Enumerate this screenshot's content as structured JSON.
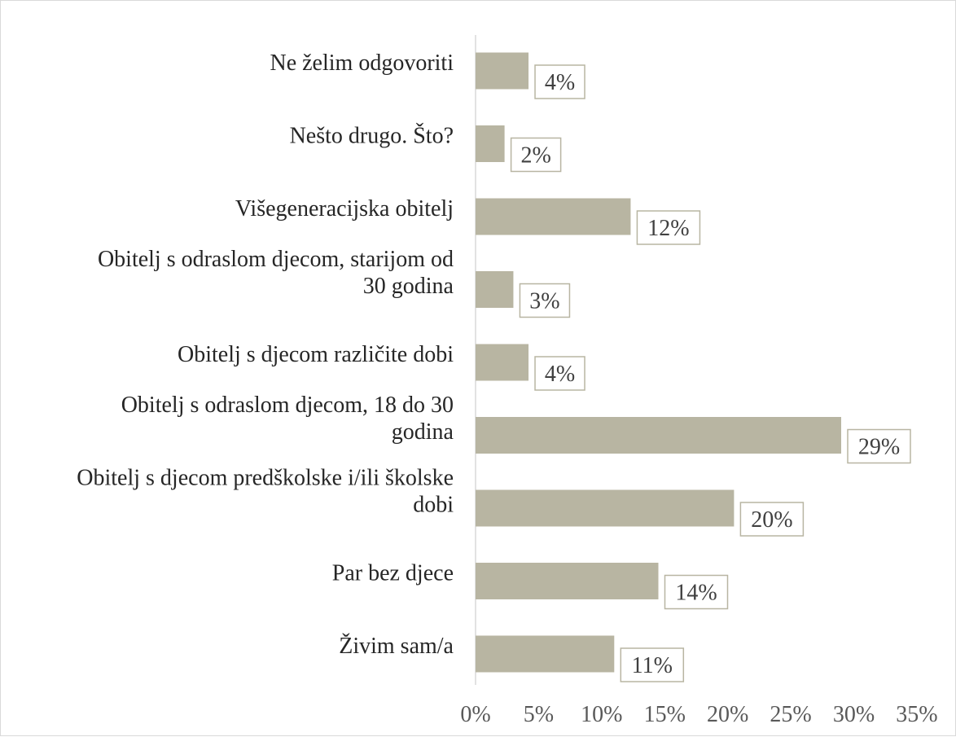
{
  "chart_data": {
    "type": "bar",
    "orientation": "horizontal",
    "categories": [
      "Ne želim odgovoriti",
      "Nešto drugo. Što?",
      "Višegeneracijska obitelj",
      "Obitelj s odraslom djecom, starijom od 30 godina",
      "Obitelj s djecom različite dobi",
      "Obitelj s odraslom djecom, 18 do 30 godina",
      "Obitelj s djecom predškolske i/ili školske dobi",
      "Par bez djece",
      "Živim sam/a"
    ],
    "category_lines": [
      [
        "Ne želim odgovoriti"
      ],
      [
        "Nešto drugo. Što?"
      ],
      [
        "Višegeneracijska obitelj"
      ],
      [
        "Obitelj s odraslom djecom, starijom od",
        "30 godina"
      ],
      [
        "Obitelj s djecom različite dobi"
      ],
      [
        "Obitelj s odraslom djecom, 18 do 30",
        "godina"
      ],
      [
        "Obitelj s djecom predškolske i/ili školske",
        "dobi"
      ],
      [
        "Par bez djece"
      ],
      [
        "Živim sam/a"
      ]
    ],
    "values": [
      4,
      2,
      12,
      3,
      4,
      29,
      20,
      14,
      11
    ],
    "plotted_values": [
      4.2,
      2.3,
      12.3,
      3.0,
      4.2,
      29.0,
      20.5,
      14.5,
      11.0
    ],
    "data_labels": [
      "4%",
      "2%",
      "12%",
      "3%",
      "4%",
      "29%",
      "20%",
      "14%",
      "11%"
    ],
    "x_ticks": [
      "0%",
      "5%",
      "10%",
      "15%",
      "20%",
      "25%",
      "30%",
      "35%"
    ],
    "xlim": [
      0,
      35
    ],
    "grid": false,
    "legend": "none",
    "title": "",
    "xlabel": "",
    "ylabel": "",
    "colors": {
      "bar": "#b8b5a2",
      "label_border": "#b8b5a2",
      "axis": "#d9d9d9"
    }
  }
}
